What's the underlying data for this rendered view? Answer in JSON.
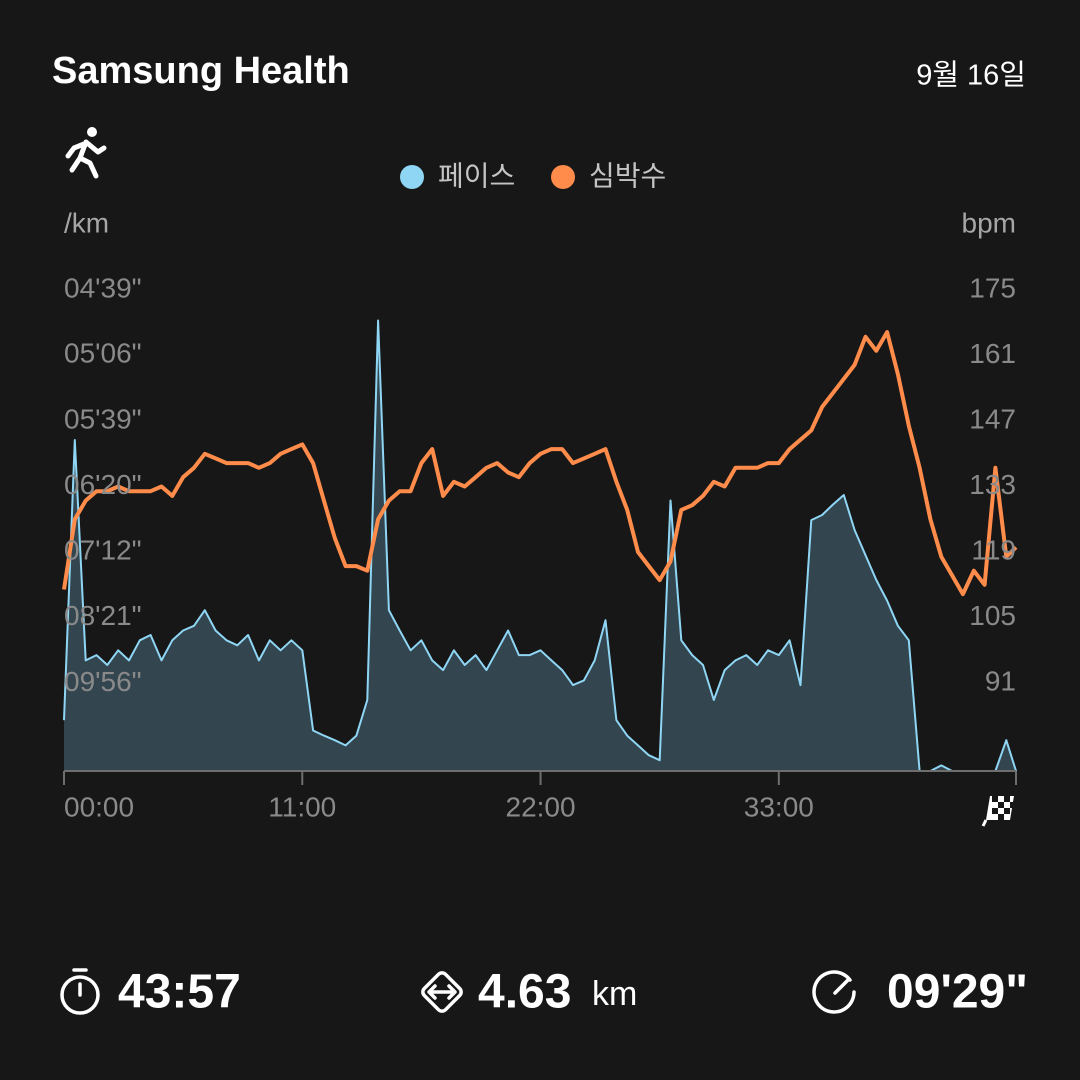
{
  "header": {
    "title": "Samsung Health",
    "date": "9월 16일"
  },
  "chart_data": {
    "type": "line",
    "y_label": "/km",
    "y2_label": "bpm",
    "x": [
      0,
      0.5,
      1,
      1.5,
      2,
      2.5,
      3,
      3.5,
      4,
      4.5,
      5,
      5.5,
      6,
      6.5,
      7,
      7.5,
      8,
      8.5,
      9,
      9.5,
      10,
      10.5,
      11,
      11.5,
      12,
      12.5,
      13,
      13.5,
      14,
      14.5,
      15,
      15.5,
      16,
      16.5,
      17,
      17.5,
      18,
      18.5,
      19,
      19.5,
      20,
      20.5,
      21,
      21.5,
      22,
      22.5,
      23,
      23.5,
      24,
      24.5,
      25,
      25.5,
      26,
      26.5,
      27,
      27.5,
      28,
      28.5,
      29,
      29.5,
      30,
      30.5,
      31,
      31.5,
      32,
      32.5,
      33,
      33.5,
      34,
      34.5,
      35,
      35.5,
      36,
      36.5,
      37,
      37.5,
      38,
      38.5,
      39,
      39.5,
      40,
      40.5,
      41,
      41.5,
      42,
      42.5,
      43,
      43.5,
      43.95
    ],
    "series": [
      {
        "name": "페이스",
        "color": "#8fd6f5",
        "fill": "#33454f",
        "axis": "y",
        "values": [
          667,
          350,
          559,
          551,
          566,
          544,
          559,
          530,
          523,
          559,
          530,
          517,
          511,
          492,
          517,
          530,
          537,
          523,
          559,
          530,
          544,
          530,
          544,
          690,
          702,
          713,
          726,
          702,
          626,
          291,
          492,
          517,
          544,
          530,
          559,
          574,
          544,
          566,
          551,
          574,
          544,
          517,
          551,
          551,
          544,
          559,
          574,
          599,
          591,
          559,
          504,
          667,
          702,
          726,
          752,
          766,
          390,
          530,
          551,
          566,
          626,
          574,
          559,
          551,
          566,
          544,
          551,
          530,
          599,
          405,
          401,
          393,
          386,
          413,
          435,
          459,
          481,
          511,
          530,
          798,
          798,
          781,
          798,
          798,
          798,
          798,
          798,
          713,
          798
        ]
      },
      {
        "name": "심박수",
        "color": "#ff8c4a",
        "axis": "y2",
        "values": [
          111,
          126,
          130,
          132,
          132,
          133,
          132,
          132,
          132,
          133,
          131,
          135,
          137,
          140,
          139,
          138,
          138,
          138,
          137,
          138,
          140,
          141,
          142,
          138,
          130,
          122,
          116,
          116,
          115,
          126,
          130,
          132,
          132,
          138,
          141,
          131,
          134,
          133,
          135,
          137,
          138,
          136,
          135,
          138,
          140,
          141,
          141,
          138,
          139,
          140,
          141,
          134,
          128,
          119,
          116,
          113,
          117,
          128,
          129,
          131,
          134,
          133,
          137,
          137,
          137,
          138,
          138,
          141,
          143,
          145,
          150,
          153,
          156,
          159,
          165,
          162,
          166,
          157,
          146,
          137,
          126,
          118,
          114,
          110,
          115,
          112,
          137,
          118,
          120
        ]
      }
    ],
    "xlim": [
      0,
      43.95
    ],
    "xticks": [
      {
        "value": 0,
        "label": "00:00"
      },
      {
        "value": 11,
        "label": "11:00"
      },
      {
        "value": 22,
        "label": "22:00"
      },
      {
        "value": 33,
        "label": "33:00"
      }
    ],
    "y_scale": "reciprocal",
    "ylim": [
      798,
      279
    ],
    "yticks": [
      {
        "value": 279,
        "label": "04'39\""
      },
      {
        "value": 306,
        "label": "05'06\""
      },
      {
        "value": 339,
        "label": "05'39\""
      },
      {
        "value": 380,
        "label": "06'20\""
      },
      {
        "value": 432,
        "label": "07'12\""
      },
      {
        "value": 501,
        "label": "08'21\""
      },
      {
        "value": 596,
        "label": "09'56\""
      }
    ],
    "y2lim": [
      72.2,
      175
    ],
    "y2ticks": [
      175,
      161,
      147,
      133,
      119,
      105,
      91
    ],
    "grid": false
  },
  "summary": {
    "duration": "43:57",
    "distance": "4.63",
    "distance_unit": "km",
    "pace": "09'29\""
  }
}
